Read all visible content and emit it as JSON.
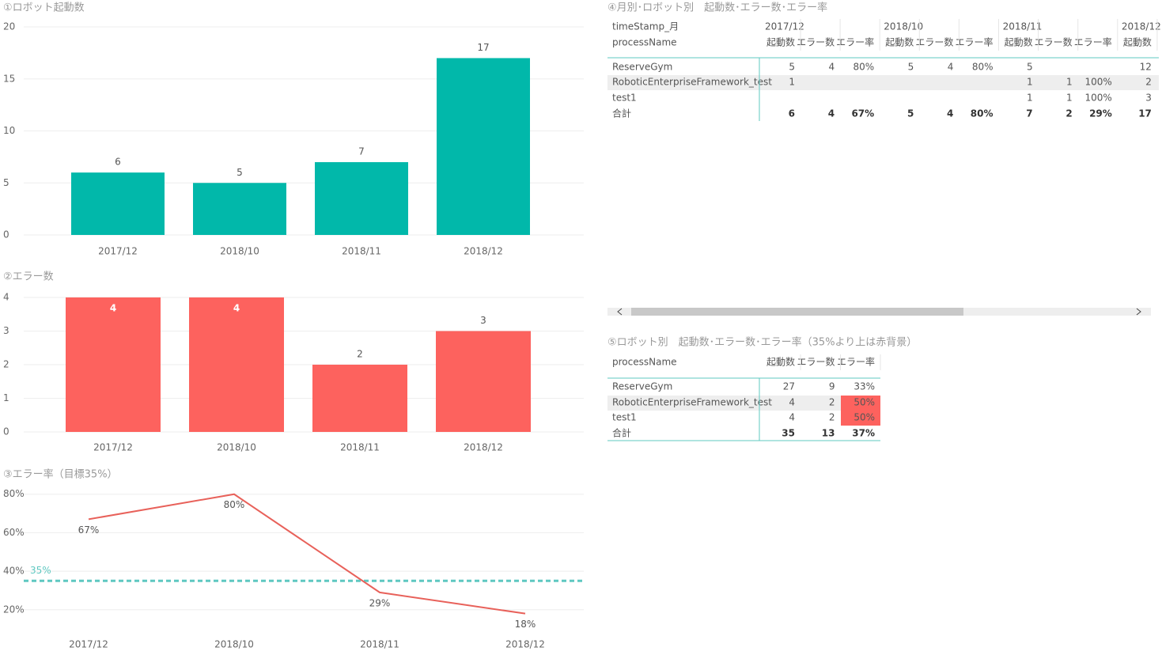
{
  "chart_data": [
    {
      "type": "bar",
      "title": "①ロボット起動数",
      "categories": [
        "2017/12",
        "2018/10",
        "2018/11",
        "2018/12"
      ],
      "values": [
        6,
        5,
        7,
        17
      ],
      "color": "#01B8AA",
      "ylim": [
        0,
        20
      ],
      "yticks": [
        0,
        5,
        10,
        15,
        20
      ],
      "grid": true
    },
    {
      "type": "bar",
      "title": "②エラー数",
      "categories": [
        "2017/12",
        "2018/10",
        "2018/11",
        "2018/12"
      ],
      "values": [
        4,
        4,
        2,
        3
      ],
      "color": "#FD625E",
      "ylim": [
        0,
        4
      ],
      "yticks": [
        0,
        1,
        2,
        3,
        4
      ],
      "grid": true
    },
    {
      "type": "line",
      "title": "③エラー率（目標35%）",
      "categories": [
        "2017/12",
        "2018/10",
        "2018/11",
        "2018/12"
      ],
      "values": [
        67,
        80,
        29,
        18
      ],
      "value_labels": [
        "67%",
        "80%",
        "29%",
        "18%"
      ],
      "color": "#E8615A",
      "ylim": [
        8,
        84
      ],
      "yticks": [
        {
          "value": 20,
          "label": "20%"
        },
        {
          "value": 40,
          "label": "40%"
        },
        {
          "value": 60,
          "label": "60%"
        },
        {
          "value": 80,
          "label": "80%"
        }
      ],
      "grid": true,
      "reference_line": {
        "value": 35,
        "label": "35%",
        "color": "#5FC8C1"
      }
    }
  ],
  "tables": [
    {
      "title": "④月別･ロボット別　起動数･エラー数･エラー率",
      "row_header": [
        "timeStamp_月",
        "processName"
      ],
      "months": [
        "2017/12",
        "2018/10",
        "2018/11",
        "2018/12"
      ],
      "columns": [
        "起動数",
        "エラー数",
        "エラー率",
        "起動数",
        "エラー数",
        "エラー率",
        "起動数",
        "エラー数",
        "エラー率",
        "起動数"
      ],
      "rows": [
        {
          "name": "ReserveGym",
          "cells": [
            5,
            4,
            "80%",
            5,
            4,
            "80%",
            5,
            null,
            null,
            12
          ]
        },
        {
          "name": "RoboticEnterpriseFramework_test",
          "cells": [
            1,
            null,
            null,
            null,
            null,
            null,
            1,
            1,
            "100%",
            2
          ]
        },
        {
          "name": "test1",
          "cells": [
            null,
            null,
            null,
            null,
            null,
            null,
            1,
            1,
            "100%",
            3
          ]
        }
      ],
      "total": {
        "name": "合計",
        "cells": [
          6,
          4,
          "67%",
          5,
          4,
          "80%",
          7,
          2,
          "29%",
          17
        ]
      }
    },
    {
      "title": "⑤ロボット別　起動数･エラー数･エラー率（35%より上は赤背景）",
      "row_header": [
        "processName"
      ],
      "columns": [
        "起動数",
        "エラー数",
        "エラー率"
      ],
      "highlight_color": "#FD625E",
      "rows": [
        {
          "name": "ReserveGym",
          "cells": [
            27,
            9,
            "33%"
          ],
          "highlight": false
        },
        {
          "name": "RoboticEnterpriseFramework_test",
          "cells": [
            4,
            2,
            "50%"
          ],
          "highlight": true
        },
        {
          "name": "test1",
          "cells": [
            4,
            2,
            "50%"
          ],
          "highlight": true
        }
      ],
      "total": {
        "name": "合計",
        "cells": [
          35,
          13,
          "37%"
        ]
      }
    }
  ]
}
